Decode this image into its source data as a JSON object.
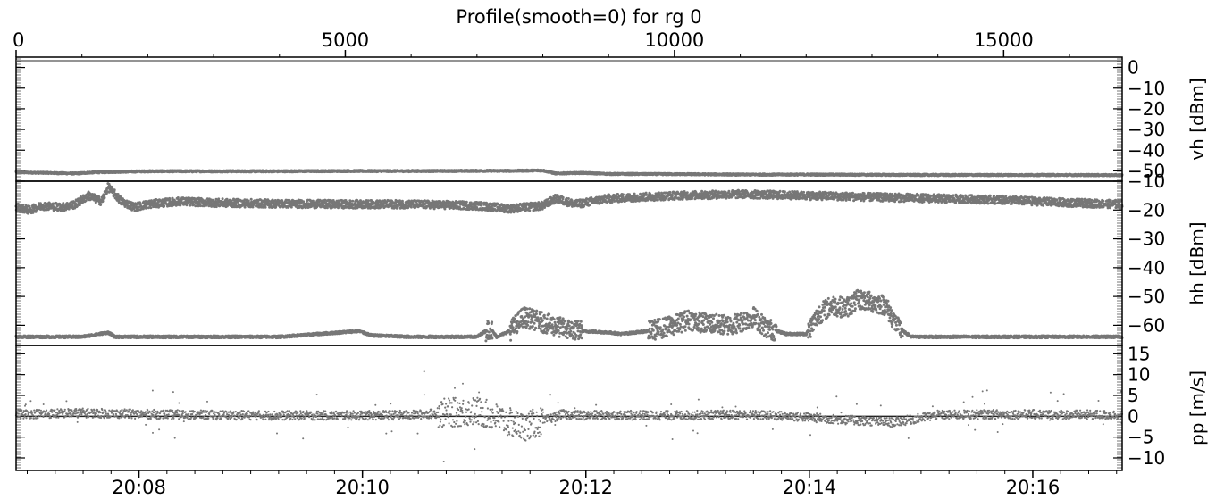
{
  "chart_data": {
    "type": "scatter",
    "title": "Profile(smooth=0) for rg 0",
    "top_axis": {
      "range": [
        0,
        16800
      ],
      "ticks": [
        0,
        5000,
        10000,
        15000
      ],
      "tick_labels": [
        "0",
        "5000",
        "10000",
        "15000"
      ]
    },
    "bottom_axis": {
      "range_minutes": [
        1266.9,
        1276.8
      ],
      "ticks_minutes": [
        1268,
        1270,
        1272,
        1274,
        1276
      ],
      "tick_labels": [
        "20:08",
        "20:10",
        "20:12",
        "20:14",
        "20:16"
      ]
    },
    "panels": [
      {
        "ylabel": "vh [dBm]",
        "ylim": [
          -55,
          5
        ],
        "tick_values": [
          0,
          -10,
          -20,
          -30,
          -40,
          -50
        ],
        "tick_labels": [
          "0",
          "−10",
          "−20",
          "−30",
          "−40",
          "−50"
        ],
        "series": [
          {
            "x": [
              0,
              100,
              500,
              900,
              1200,
              1500,
              2000,
              3000,
              4000,
              5000,
              6000,
              7000,
              7500,
              8000,
              8200,
              8600,
              9000,
              10000,
              11000,
              12000,
              13000,
              14000,
              15000,
              16000,
              16800
            ],
            "y": [
              -50.5,
              -50.8,
              -51,
              -51.3,
              -50.7,
              -50.5,
              -50.2,
              -50.2,
              -50.2,
              -50.1,
              -50.1,
              -50,
              -50,
              -49.8,
              -51.3,
              -51,
              -51.5,
              -51.6,
              -51.8,
              -51.8,
              -51.9,
              -52,
              -52,
              -52,
              -52.1
            ]
          }
        ]
      },
      {
        "ylabel": "hh [dBm]",
        "ylim": [
          -67,
          -10
        ],
        "tick_values": [
          -10,
          -20,
          -30,
          -40,
          -50,
          -60
        ],
        "tick_labels": [
          "−10",
          "−20",
          "−30",
          "−40",
          "−50",
          "−60"
        ],
        "series": [
          {
            "x": [
              0,
              200,
              400,
              700,
              900,
              1100,
              1300,
              1400,
              1600,
              1800,
              2000,
              2500,
              3000,
              4000,
              5000,
              6000,
              7000,
              7500,
              8000,
              8200,
              8500,
              9000,
              10000,
              11000,
              12000,
              13000,
              14000,
              15000,
              16000,
              16800
            ],
            "y": [
              -19,
              -20,
              -18.5,
              -19,
              -18,
              -15,
              -17,
              -12,
              -17,
              -19,
              -18,
              -17,
              -17.5,
              -17.8,
              -18,
              -18,
              -18.5,
              -19.5,
              -18.5,
              -16,
              -18,
              -16,
              -15,
              -14.5,
              -15,
              -15.5,
              -16,
              -16.5,
              -17.5,
              -18
            ]
          },
          {
            "x": [
              0,
              1000,
              1400,
              1500,
              2000,
              3000,
              4000,
              5200,
              5400,
              6000,
              7000,
              7200,
              7300,
              7500,
              7700,
              8000,
              8300,
              8600,
              9000,
              9200,
              9600,
              9800,
              10000,
              10200,
              10400,
              10800,
              11000,
              11200,
              11400,
              11700,
              12000,
              12200,
              12400,
              12600,
              12800,
              13000,
              13200,
              13400,
              13600,
              13800,
              14000,
              14500,
              15000,
              16000,
              16800
            ],
            "y": [
              -64,
              -64,
              -62.5,
              -64,
              -64,
              -64,
              -64,
              -62,
              -63.5,
              -64,
              -64,
              -61,
              -64,
              -62,
              -57,
              -59,
              -61,
              -62,
              -62.5,
              -63,
              -62,
              -61,
              -60,
              -58,
              -59,
              -60,
              -59,
              -57,
              -61,
              -63,
              -63,
              -56,
              -53,
              -54,
              -51,
              -52,
              -53,
              -61,
              -64,
              -64,
              -64,
              -64,
              -64,
              -64,
              -64
            ]
          }
        ]
      },
      {
        "ylabel": "pp [m/s]",
        "ylim": [
          -13,
          17
        ],
        "tick_values": [
          15,
          10,
          5,
          0,
          -5,
          -10
        ],
        "tick_labels": [
          "15",
          "10",
          "5",
          "0",
          "−5",
          "−10"
        ],
        "series": [
          {
            "x": [
              0,
              1000,
              2000,
              3000,
              4000,
              5000,
              6000,
              6500,
              7000,
              7200,
              7500,
              7700,
              8000,
              8300,
              8600,
              9000,
              10000,
              11000,
              11500,
              12000,
              12500,
              13000,
              13300,
              13600,
              14000,
              15000,
              16000,
              16800
            ],
            "y": [
              0.5,
              0.8,
              0.5,
              0.3,
              0.2,
              0.2,
              0.3,
              0.8,
              1.2,
              0.2,
              -1.5,
              -2.5,
              -1.2,
              0.5,
              0.2,
              0.3,
              0.2,
              0.4,
              0.2,
              -0.2,
              -0.8,
              -1.2,
              -1.5,
              -0.8,
              0.3,
              0.5,
              0.4,
              0.3
            ]
          }
        ]
      }
    ],
    "grid": false,
    "legend": "none",
    "marker_color": "#777777"
  }
}
